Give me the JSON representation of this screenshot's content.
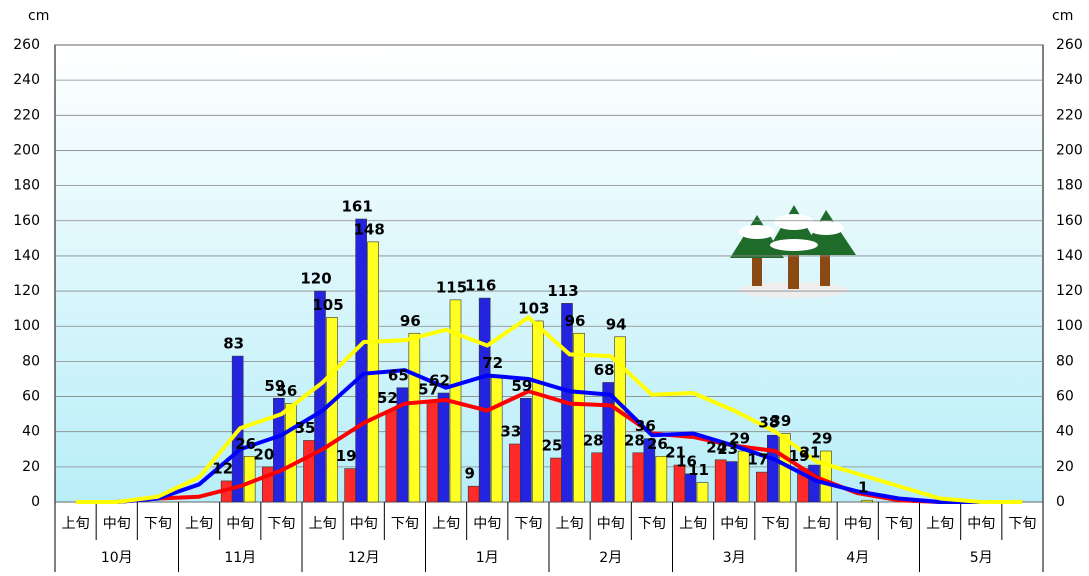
{
  "chart_data": {
    "type": "bar",
    "y_unit": "cm",
    "categories": [
      "上旬",
      "中旬",
      "下旬",
      "上旬",
      "中旬",
      "下旬",
      "上旬",
      "中旬",
      "下旬",
      "上旬",
      "中旬",
      "下旬",
      "上旬",
      "中旬",
      "下旬",
      "上旬",
      "中旬",
      "下旬",
      "上旬",
      "中旬",
      "下旬",
      "上旬",
      "中旬",
      "下旬"
    ],
    "months": [
      "10月",
      "11月",
      "12月",
      "1月",
      "2月",
      "3月",
      "4月",
      "5月"
    ],
    "series": [
      {
        "color": "#ff2a2a",
        "values": [
          null,
          null,
          null,
          null,
          12,
          20,
          35,
          19,
          52,
          57,
          9,
          33,
          25,
          28,
          28,
          21,
          24,
          17,
          19,
          null,
          null,
          null,
          null,
          null
        ]
      },
      {
        "color": "#2424e0",
        "values": [
          null,
          null,
          null,
          null,
          83,
          59,
          120,
          161,
          65,
          62,
          116,
          59,
          113,
          68,
          36,
          16,
          23,
          38,
          21,
          null,
          null,
          null,
          null,
          null
        ]
      },
      {
        "color": "#ffff22",
        "values": [
          null,
          null,
          null,
          null,
          26,
          56,
          105,
          148,
          96,
          115,
          72,
          103,
          96,
          94,
          26,
          11,
          29,
          39,
          29,
          1,
          null,
          null,
          null,
          null
        ]
      }
    ],
    "line_series": [
      {
        "color": "#ff0000",
        "values": [
          0,
          0,
          2,
          3,
          9,
          18,
          30,
          45,
          56,
          58,
          52,
          63,
          56,
          55,
          39,
          37,
          32,
          29,
          14,
          5,
          1,
          0,
          0,
          0
        ]
      },
      {
        "color": "#0000ff",
        "values": [
          0,
          0,
          2,
          10,
          30,
          38,
          52,
          73,
          75,
          65,
          72,
          70,
          63,
          61,
          38,
          39,
          32,
          24,
          12,
          6,
          2,
          0,
          0,
          0
        ]
      },
      {
        "color": "#ffff00",
        "values": [
          0,
          0,
          3,
          14,
          42,
          50,
          68,
          91,
          92,
          98,
          89,
          105,
          84,
          83,
          61,
          62,
          52,
          40,
          23,
          16,
          9,
          2,
          0,
          0
        ]
      }
    ],
    "ylim": [
      0,
      260
    ],
    "yticks": [
      0,
      20,
      40,
      60,
      80,
      100,
      120,
      140,
      160,
      180,
      200,
      220,
      240,
      260
    ],
    "grid": true
  }
}
